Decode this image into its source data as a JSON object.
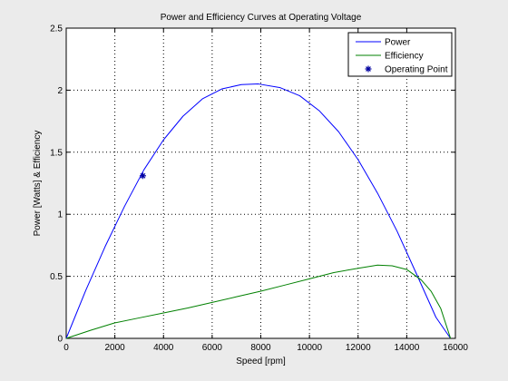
{
  "chart_data": {
    "type": "line",
    "title": "Power and Efficiency Curves at Operating Voltage",
    "xlabel": "Speed [rpm]",
    "ylabel": "Power [Watts] & Efficiency",
    "xlim": [
      0,
      16000
    ],
    "ylim": [
      0,
      2.5
    ],
    "grid": true,
    "legend_position": "top-right",
    "x_ticks": [
      0,
      2000,
      4000,
      6000,
      8000,
      10000,
      12000,
      14000,
      16000
    ],
    "y_ticks": [
      0,
      0.5,
      1,
      1.5,
      2,
      2.5
    ],
    "x_tick_labels": [
      "0",
      "2000",
      "4000",
      "6000",
      "8000",
      "10000",
      "12000",
      "14000",
      "16000"
    ],
    "y_tick_labels": [
      "0",
      "0.5",
      "1",
      "1.5",
      "2",
      "2.5"
    ],
    "series": [
      {
        "name": "Power",
        "color": "#0000ff",
        "style": "line",
        "x": [
          0,
          800,
          1600,
          2400,
          3200,
          4000,
          4800,
          5600,
          6400,
          7200,
          7900,
          8800,
          9600,
          10400,
          11200,
          12000,
          12800,
          13600,
          14400,
          15200,
          15800
        ],
        "y": [
          0,
          0.385,
          0.74,
          1.065,
          1.36,
          1.6,
          1.79,
          1.93,
          2.01,
          2.045,
          2.05,
          2.02,
          1.955,
          1.835,
          1.665,
          1.44,
          1.17,
          0.865,
          0.52,
          0.17,
          0
        ]
      },
      {
        "name": "Efficiency",
        "color": "#008000",
        "style": "line",
        "x": [
          0,
          1000,
          2000,
          3000,
          4000,
          5000,
          6000,
          7000,
          8000,
          9000,
          10000,
          11000,
          12000,
          12800,
          13400,
          14000,
          14600,
          15000,
          15400,
          15800
        ],
        "y": [
          0,
          0.065,
          0.125,
          0.165,
          0.205,
          0.245,
          0.29,
          0.335,
          0.38,
          0.43,
          0.48,
          0.53,
          0.565,
          0.59,
          0.585,
          0.555,
          0.47,
          0.38,
          0.24,
          0
        ]
      },
      {
        "name": "Operating Point",
        "color": "#0000a0",
        "style": "marker",
        "marker": "asterisk",
        "x": [
          3150
        ],
        "y": [
          1.31
        ]
      }
    ]
  }
}
